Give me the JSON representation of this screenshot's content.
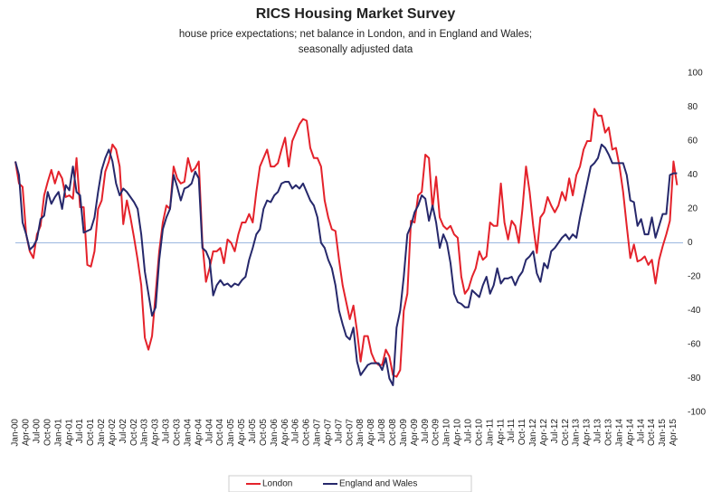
{
  "chart_data": {
    "type": "line",
    "title": "RICS Housing Market Survey",
    "subtitle": [
      "house price expectations; net balance in London, and in England and Wales;",
      "seasonally adjusted data"
    ],
    "categories": [
      "Jan-00",
      null,
      null,
      "Apr-00",
      null,
      null,
      "Jul-00",
      null,
      null,
      "Oct-00",
      null,
      null,
      "Jan-01",
      null,
      null,
      "Apr-01",
      null,
      null,
      "Jul-01",
      null,
      null,
      "Oct-01",
      null,
      null,
      "Jan-02",
      null,
      null,
      "Apr-02",
      null,
      null,
      "Jul-02",
      null,
      null,
      "Oct-02",
      null,
      null,
      "Jan-03",
      null,
      null,
      "Apr-03",
      null,
      null,
      "Jul-03",
      null,
      null,
      "Oct-03",
      null,
      null,
      "Jan-04",
      null,
      null,
      "Apr-04",
      null,
      null,
      "Jul-04",
      null,
      null,
      "Oct-04",
      null,
      null,
      "Jan-05",
      null,
      null,
      "Apr-05",
      null,
      null,
      "Jul-05",
      null,
      null,
      "Oct-05",
      null,
      null,
      "Jan-06",
      null,
      null,
      "Apr-06",
      null,
      null,
      "Jul-06",
      null,
      null,
      "Oct-06",
      null,
      null,
      "Jan-07",
      null,
      null,
      "Apr-07",
      null,
      null,
      "Jul-07",
      null,
      null,
      "Oct-07",
      null,
      null,
      "Jan-08",
      null,
      null,
      "Apr-08",
      null,
      null,
      "Jul-08",
      null,
      null,
      "Oct-08",
      null,
      null,
      "Jan-09",
      null,
      null,
      "Apr-09",
      null,
      null,
      "Jul-09",
      null,
      null,
      "Oct-09",
      null,
      null,
      "Jan-10",
      null,
      null,
      "Apr-10",
      null,
      null,
      "Jul-10",
      null,
      null,
      "Oct-10",
      null,
      null,
      "Jan-11",
      null,
      null,
      "Apr-11",
      null,
      null,
      "Jul-11",
      null,
      null,
      "Oct-11",
      null,
      null,
      "Jan-12",
      null,
      null,
      "Apr-12",
      null,
      null,
      "Jul-12",
      null,
      null,
      "Oct-12",
      null,
      null,
      "Jan-13",
      null,
      null,
      "Apr-13",
      null,
      null,
      "Jul-13",
      null,
      null,
      "Oct-13",
      null,
      null,
      "Jan-14",
      null,
      null,
      "Apr-14",
      null,
      null,
      "Jul-14",
      null,
      null,
      "Oct-14",
      null,
      null,
      "Jan-15",
      null,
      null,
      "Apr-15",
      null
    ],
    "series": [
      {
        "name": "London",
        "color": "#e4222b",
        "values": [
          48,
          35,
          33,
          5,
          -5,
          -9,
          5,
          10,
          28,
          36,
          43,
          35,
          42,
          38,
          27,
          28,
          26,
          50,
          21,
          21,
          -13,
          -14,
          -5,
          20,
          25,
          42,
          48,
          58,
          55,
          45,
          11,
          25,
          15,
          3,
          -10,
          -25,
          -56,
          -63,
          -55,
          -30,
          -5,
          12,
          22,
          20,
          45,
          38,
          35,
          36,
          50,
          42,
          44,
          48,
          0,
          -23,
          -15,
          -5,
          -5,
          -3,
          -12,
          2,
          0,
          -5,
          5,
          12,
          12,
          17,
          12,
          30,
          45,
          50,
          55,
          45,
          45,
          47,
          55,
          62,
          45,
          60,
          65,
          70,
          73,
          72,
          56,
          50,
          50,
          45,
          25,
          15,
          8,
          7,
          -10,
          -25,
          -35,
          -45,
          -37,
          -52,
          -70,
          -55,
          -55,
          -65,
          -70,
          -72,
          -72,
          -63,
          -67,
          -78,
          -79,
          -75,
          -40,
          -30,
          13,
          12,
          28,
          30,
          52,
          50,
          20,
          39,
          15,
          10,
          8,
          10,
          5,
          3,
          -20,
          -30,
          -27,
          -20,
          -15,
          -5,
          -10,
          -8,
          12,
          10,
          10,
          35,
          12,
          2,
          13,
          10,
          0,
          20,
          45,
          30,
          10,
          -6,
          15,
          18,
          27,
          22,
          18,
          22,
          30,
          25,
          38,
          28,
          40,
          45,
          55,
          60,
          60,
          79,
          75,
          75,
          65,
          68,
          55,
          56,
          45,
          30,
          10,
          -9,
          -1,
          -11,
          -10,
          -8,
          -13,
          -10,
          -24,
          -10,
          -2,
          5,
          13,
          48,
          34
        ]
      },
      {
        "name": "England and Wales",
        "color": "#26286b",
        "values": [
          48,
          40,
          12,
          5,
          -4,
          -2,
          2,
          14,
          16,
          30,
          23,
          27,
          30,
          20,
          34,
          31,
          45,
          30,
          28,
          6,
          7,
          8,
          15,
          30,
          43,
          50,
          55,
          48,
          35,
          28,
          32,
          30,
          27,
          24,
          20,
          5,
          -17,
          -30,
          -43,
          -38,
          -10,
          8,
          15,
          20,
          40,
          33,
          25,
          32,
          33,
          35,
          42,
          38,
          -3,
          -5,
          -10,
          -31,
          -25,
          -22,
          -25,
          -24,
          -26,
          -24,
          -25,
          -22,
          -20,
          -10,
          -3,
          5,
          8,
          20,
          25,
          24,
          28,
          30,
          35,
          36,
          36,
          32,
          34,
          32,
          35,
          30,
          25,
          22,
          15,
          0,
          -3,
          -10,
          -15,
          -25,
          -40,
          -48,
          -55,
          -57,
          -50,
          -70,
          -78,
          -75,
          -72,
          -71,
          -71,
          -71,
          -75,
          -68,
          -80,
          -84,
          -50,
          -40,
          -20,
          5,
          10,
          18,
          22,
          28,
          26,
          13,
          22,
          12,
          -3,
          5,
          0,
          -12,
          -30,
          -35,
          -36,
          -38,
          -38,
          -28,
          -30,
          -32,
          -25,
          -20,
          -30,
          -25,
          -15,
          -24,
          -21,
          -21,
          -20,
          -25,
          -20,
          -17,
          -10,
          -8,
          -5,
          -18,
          -23,
          -12,
          -15,
          -5,
          -3,
          0,
          3,
          5,
          2,
          5,
          3,
          15,
          25,
          35,
          45,
          47,
          50,
          58,
          56,
          52,
          47,
          47,
          47,
          47,
          40,
          25,
          24,
          10,
          14,
          5,
          5,
          15,
          3,
          10,
          17,
          17,
          40,
          41,
          41
        ]
      }
    ],
    "ylim": [
      -100,
      100
    ],
    "yticks": [
      -100,
      -80,
      -60,
      -40,
      -20,
      0,
      20,
      40,
      60,
      80,
      100
    ],
    "zero_line_color": "#9bb7e0"
  }
}
